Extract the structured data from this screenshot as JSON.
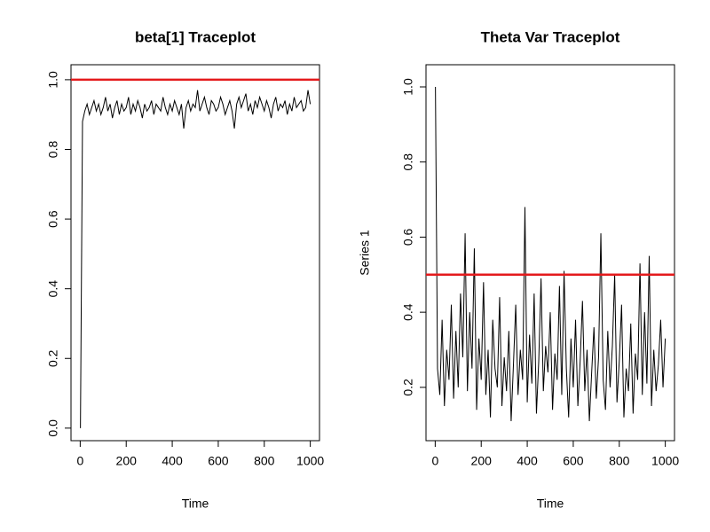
{
  "chart_data": [
    {
      "type": "line",
      "title": "beta[1] Traceplot",
      "xlabel": "Time",
      "xlim": [
        -40,
        1040
      ],
      "ylim": [
        -0.036,
        1.043
      ],
      "xticks": [
        0,
        200,
        400,
        600,
        800,
        1000
      ],
      "yticks": [
        {
          "value": 0,
          "label": "0.0"
        },
        0.2,
        0.4,
        0.6,
        0.8,
        {
          "value": 1,
          "label": "1.0"
        }
      ],
      "hline": {
        "value": 1.0,
        "color": "#e41a1c"
      },
      "series": [
        {
          "color": "#000000",
          "x": [
            1,
            10,
            20,
            30,
            40,
            50,
            60,
            70,
            80,
            90,
            100,
            110,
            120,
            130,
            140,
            150,
            160,
            170,
            180,
            190,
            200,
            210,
            220,
            230,
            240,
            250,
            260,
            270,
            280,
            290,
            300,
            310,
            320,
            330,
            340,
            350,
            360,
            370,
            380,
            390,
            400,
            410,
            420,
            430,
            440,
            450,
            460,
            470,
            480,
            490,
            500,
            510,
            520,
            530,
            540,
            550,
            560,
            570,
            580,
            590,
            600,
            610,
            620,
            630,
            640,
            650,
            660,
            670,
            680,
            690,
            700,
            710,
            720,
            730,
            740,
            750,
            760,
            770,
            780,
            790,
            800,
            810,
            820,
            830,
            840,
            850,
            860,
            870,
            880,
            890,
            900,
            910,
            920,
            930,
            940,
            950,
            960,
            970,
            980,
            990,
            1000
          ],
          "values": [
            0,
            0.88,
            0.91,
            0.93,
            0.9,
            0.92,
            0.94,
            0.91,
            0.93,
            0.9,
            0.92,
            0.95,
            0.91,
            0.93,
            0.89,
            0.92,
            0.94,
            0.9,
            0.93,
            0.91,
            0.92,
            0.95,
            0.9,
            0.93,
            0.91,
            0.94,
            0.92,
            0.89,
            0.93,
            0.91,
            0.92,
            0.94,
            0.9,
            0.93,
            0.92,
            0.91,
            0.95,
            0.92,
            0.9,
            0.93,
            0.91,
            0.94,
            0.92,
            0.9,
            0.93,
            0.86,
            0.92,
            0.94,
            0.91,
            0.93,
            0.92,
            0.97,
            0.91,
            0.93,
            0.95,
            0.92,
            0.9,
            0.94,
            0.93,
            0.91,
            0.92,
            0.95,
            0.93,
            0.9,
            0.92,
            0.94,
            0.91,
            0.86,
            0.93,
            0.95,
            0.92,
            0.94,
            0.96,
            0.91,
            0.93,
            0.9,
            0.94,
            0.92,
            0.95,
            0.93,
            0.91,
            0.94,
            0.92,
            0.89,
            0.93,
            0.95,
            0.91,
            0.93,
            0.92,
            0.94,
            0.9,
            0.93,
            0.91,
            0.95,
            0.92,
            0.93,
            0.94,
            0.91,
            0.92,
            0.97,
            0.93
          ]
        }
      ]
    },
    {
      "type": "line",
      "title": "Theta Var Traceplot",
      "xlabel": "Time",
      "ylabel": "Series 1",
      "xlim": [
        -40,
        1040
      ],
      "ylim": [
        0.058,
        1.059
      ],
      "xticks": [
        0,
        200,
        400,
        600,
        800,
        1000
      ],
      "yticks": [
        0.2,
        0.4,
        0.6,
        0.8,
        {
          "value": 1,
          "label": "1.0"
        }
      ],
      "hline": {
        "value": 0.5,
        "color": "#e41a1c"
      },
      "series": [
        {
          "color": "#000000",
          "x": [
            1,
            10,
            20,
            30,
            40,
            50,
            60,
            70,
            80,
            90,
            100,
            110,
            120,
            130,
            140,
            150,
            160,
            170,
            180,
            190,
            200,
            210,
            220,
            230,
            240,
            250,
            260,
            270,
            280,
            290,
            300,
            310,
            320,
            330,
            340,
            350,
            360,
            370,
            380,
            390,
            400,
            410,
            420,
            430,
            440,
            450,
            460,
            470,
            480,
            490,
            500,
            510,
            520,
            530,
            540,
            550,
            560,
            570,
            580,
            590,
            600,
            610,
            620,
            630,
            640,
            650,
            660,
            670,
            680,
            690,
            700,
            710,
            720,
            730,
            740,
            750,
            760,
            770,
            780,
            790,
            800,
            810,
            820,
            830,
            840,
            850,
            860,
            870,
            880,
            890,
            900,
            910,
            920,
            930,
            940,
            950,
            960,
            970,
            980,
            990,
            1000
          ],
          "values": [
            1.0,
            0.25,
            0.18,
            0.38,
            0.15,
            0.3,
            0.22,
            0.42,
            0.17,
            0.35,
            0.2,
            0.45,
            0.28,
            0.61,
            0.19,
            0.4,
            0.25,
            0.57,
            0.14,
            0.33,
            0.22,
            0.48,
            0.18,
            0.3,
            0.12,
            0.38,
            0.25,
            0.2,
            0.44,
            0.15,
            0.28,
            0.19,
            0.35,
            0.11,
            0.26,
            0.42,
            0.18,
            0.3,
            0.22,
            0.68,
            0.16,
            0.34,
            0.21,
            0.45,
            0.13,
            0.27,
            0.49,
            0.19,
            0.31,
            0.24,
            0.4,
            0.14,
            0.29,
            0.22,
            0.47,
            0.18,
            0.51,
            0.25,
            0.12,
            0.33,
            0.2,
            0.38,
            0.15,
            0.27,
            0.43,
            0.19,
            0.3,
            0.11,
            0.24,
            0.36,
            0.17,
            0.28,
            0.61,
            0.22,
            0.14,
            0.35,
            0.2,
            0.31,
            0.5,
            0.16,
            0.27,
            0.42,
            0.12,
            0.25,
            0.19,
            0.37,
            0.13,
            0.29,
            0.22,
            0.53,
            0.18,
            0.4,
            0.21,
            0.55,
            0.15,
            0.3,
            0.19,
            0.26,
            0.38,
            0.2,
            0.33
          ]
        }
      ]
    }
  ]
}
